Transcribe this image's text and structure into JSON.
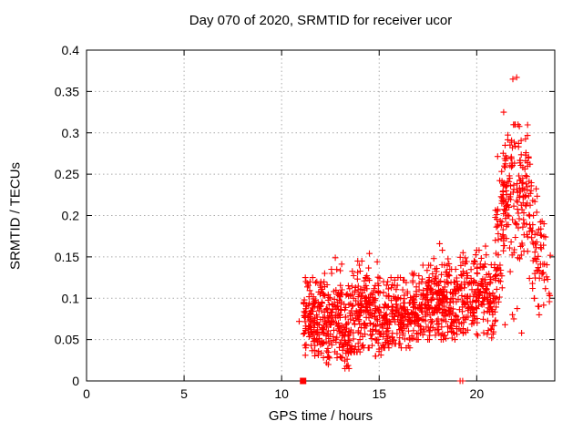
{
  "page": {
    "background": "#ffffff"
  },
  "chart_data": {
    "type": "scatter",
    "title": "Day 070 of 2020, SRMTID for receiver ucor",
    "xlabel": "GPS time / hours",
    "ylabel": "SRMTID / TECUs",
    "xlim": [
      0,
      24
    ],
    "ylim": [
      0,
      0.4
    ],
    "xticks": {
      "values": [
        0,
        5,
        10,
        15,
        20
      ],
      "labels": [
        "0",
        "5",
        "10",
        "15",
        "20"
      ]
    },
    "yticks": {
      "values": [
        0,
        0.05,
        0.1,
        0.15,
        0.2,
        0.25,
        0.3,
        0.35,
        0.4
      ],
      "labels": [
        "0",
        "0.05",
        "0.1",
        "0.15",
        "0.2",
        "0.25",
        "0.3",
        "0.35",
        "0.4"
      ]
    },
    "grid": {
      "show": true,
      "color": "#ababab",
      "dash": "1.5 3"
    },
    "frame_color": "#000000",
    "legend": "none",
    "series": [
      {
        "name": "SRMTID",
        "marker": "plus",
        "color": "#ff0000",
        "seed": 13,
        "density_bands": [
          [
            11.12,
            11.6,
            65,
            0.078,
            0.042,
            0.03,
            0.125
          ],
          [
            11.6,
            12.1,
            70,
            0.072,
            0.045,
            0.025,
            0.12
          ],
          [
            12.1,
            12.6,
            70,
            0.068,
            0.048,
            0.02,
            0.13
          ],
          [
            12.6,
            13.1,
            68,
            0.078,
            0.05,
            0.028,
            0.148
          ],
          [
            13.1,
            13.6,
            68,
            0.062,
            0.046,
            0.015,
            0.115
          ],
          [
            13.6,
            14.1,
            66,
            0.08,
            0.048,
            0.035,
            0.14
          ],
          [
            14.1,
            14.6,
            62,
            0.088,
            0.048,
            0.04,
            0.152
          ],
          [
            14.6,
            15.1,
            62,
            0.078,
            0.046,
            0.03,
            0.13
          ],
          [
            15.1,
            15.6,
            60,
            0.075,
            0.042,
            0.04,
            0.12
          ],
          [
            15.6,
            16.1,
            60,
            0.08,
            0.042,
            0.045,
            0.125
          ],
          [
            16.1,
            16.6,
            60,
            0.078,
            0.042,
            0.04,
            0.122
          ],
          [
            16.6,
            17.1,
            62,
            0.088,
            0.042,
            0.05,
            0.13
          ],
          [
            17.1,
            17.6,
            65,
            0.093,
            0.042,
            0.05,
            0.14
          ],
          [
            17.6,
            18.1,
            70,
            0.096,
            0.042,
            0.055,
            0.148
          ],
          [
            18.1,
            18.6,
            70,
            0.098,
            0.046,
            0.05,
            0.162
          ],
          [
            18.6,
            19.1,
            62,
            0.09,
            0.042,
            0.05,
            0.135
          ],
          [
            19.1,
            19.6,
            54,
            0.098,
            0.046,
            0.05,
            0.15
          ],
          [
            19.6,
            20.1,
            54,
            0.1,
            0.048,
            0.055,
            0.158
          ],
          [
            20.1,
            20.6,
            52,
            0.105,
            0.048,
            0.055,
            0.158
          ],
          [
            20.6,
            21.0,
            45,
            0.1,
            0.05,
            0.05,
            0.17
          ],
          [
            20.95,
            21.4,
            48,
            0.17,
            0.075,
            0.07,
            0.28
          ],
          [
            21.35,
            21.8,
            65,
            0.235,
            0.07,
            0.13,
            0.325
          ],
          [
            21.8,
            22.2,
            40,
            0.22,
            0.085,
            0.08,
            0.31
          ],
          [
            22.2,
            22.7,
            62,
            0.225,
            0.075,
            0.12,
            0.315
          ],
          [
            22.7,
            23.1,
            40,
            0.18,
            0.07,
            0.1,
            0.27
          ],
          [
            23.1,
            23.5,
            26,
            0.148,
            0.055,
            0.09,
            0.225
          ],
          [
            23.5,
            23.8,
            10,
            0.13,
            0.045,
            0.09,
            0.19
          ]
        ],
        "outlier_points": [
          [
            10.9,
            0.072
          ],
          [
            12.3,
            0.022
          ],
          [
            12.55,
            0.135
          ],
          [
            12.75,
            0.149
          ],
          [
            13.35,
            0.018
          ],
          [
            13.9,
            0.145
          ],
          [
            14.5,
            0.154
          ],
          [
            14.9,
            0.144
          ],
          [
            16.75,
            0.128
          ],
          [
            18.1,
            0.166
          ],
          [
            19.3,
            0.155
          ],
          [
            20.0,
            0.158
          ],
          [
            20.45,
            0.163
          ],
          [
            21.45,
            0.068
          ],
          [
            21.85,
            0.365
          ],
          [
            21.9,
            0.075
          ],
          [
            22.05,
            0.367
          ],
          [
            22.3,
            0.058
          ],
          [
            23.2,
            0.08
          ],
          [
            23.45,
            0.19
          ]
        ],
        "zero_square": [
          11.1,
          0
        ],
        "zero_ticks": [
          [
            19.15,
            0
          ],
          [
            19.28,
            0
          ]
        ]
      }
    ]
  }
}
